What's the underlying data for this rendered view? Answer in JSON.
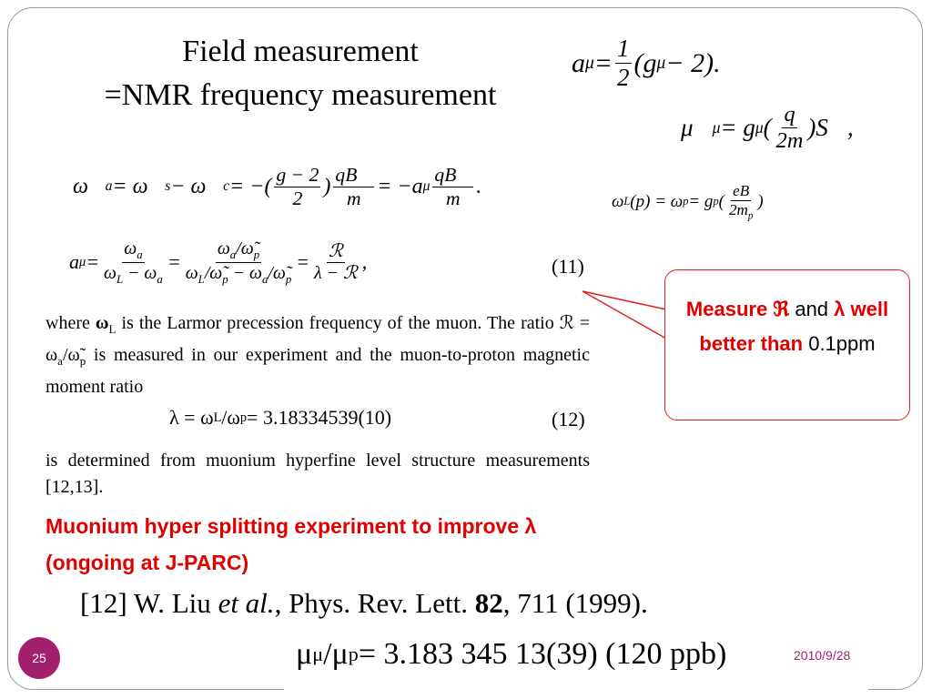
{
  "slide": {
    "title_lines": [
      "Field measurement",
      "=NMR frequency measurement"
    ],
    "number": "25",
    "date": "2010/9/28"
  },
  "equations": {
    "a_mu": [
      "a",
      {
        "sub": "μ"
      },
      " = ",
      {
        "num": [
          "1"
        ],
        "den": [
          "2"
        ]
      },
      "(g",
      {
        "sub": "μ"
      },
      " − 2)."
    ],
    "mu_vec": [
      "μ⃗",
      {
        "sub": "μ"
      },
      " = g",
      {
        "sub": "μ"
      },
      "(",
      {
        "num": [
          "q"
        ],
        "den": [
          "2m"
        ]
      },
      ")S⃗,"
    ],
    "omega_a": [
      "ω⃗",
      {
        "sub": "a"
      },
      " = ω⃗",
      {
        "sub": "s"
      },
      " − ω⃗",
      {
        "sub": "c"
      },
      " = −(",
      {
        "num": [
          "g − 2"
        ],
        "den": [
          "2"
        ]
      },
      ")",
      {
        "num": [
          "qB⃗"
        ],
        "den": [
          "m"
        ]
      },
      " = −a",
      {
        "sub": "μ"
      },
      " ",
      {
        "num": [
          "qB⃗"
        ],
        "den": [
          "m"
        ]
      },
      "."
    ],
    "omega_L": [
      "ω",
      {
        "sub": "L"
      },
      "(p) = ω",
      {
        "sub": "p"
      },
      " = g",
      {
        "sub": "p"
      },
      " (",
      {
        "num": [
          "eB"
        ],
        "den": [
          "2m",
          {
            "sub": "p"
          }
        ]
      },
      ")"
    ],
    "a_mu_ratio": [
      "a",
      {
        "sub": "μ"
      },
      " = ",
      {
        "num": [
          "ω",
          {
            "sub": "a"
          }
        ],
        "den": [
          "ω",
          {
            "sub": "L"
          },
          " − ω",
          {
            "sub": "a"
          }
        ]
      },
      " = ",
      {
        "num": [
          "ω",
          {
            "sub": "a"
          },
          "/ω̃",
          {
            "sub": "p"
          }
        ],
        "den": [
          "ω",
          {
            "sub": "L"
          },
          "/ω̃",
          {
            "sub": "p"
          },
          " − ω",
          {
            "sub": "a"
          },
          "/ω̃",
          {
            "sub": "p"
          }
        ]
      },
      " = ",
      {
        "num": [
          "ℛ"
        ],
        "den": [
          "λ − ℛ"
        ]
      },
      ","
    ],
    "a_mu_ratio_number": "(11)",
    "lambda": [
      "λ = ω",
      {
        "sub": "L"
      },
      "/ω",
      {
        "sub": "p"
      },
      " = 3.18334539(10)"
    ],
    "lambda_number": "(12)",
    "mu_ratio": [
      "μ",
      {
        "sub": "μ"
      },
      "/μ",
      {
        "sub": "p"
      },
      " = 3.183 345 13(39)  (120 ppb)"
    ]
  },
  "paper_text": {
    "paragraph_1": [
      "where ",
      {
        "b": "ω"
      },
      {
        "sub": "L"
      },
      " is the Larmor precession frequency of the muon. The ratio ℛ = ω",
      {
        "sub": "a"
      },
      "/ω̃",
      {
        "sub": "p"
      },
      " is measured in our experiment and the muon-to-proton magnetic moment ratio"
    ],
    "paragraph_2": "is determined from muonium hyperfine level structure measurements [12,13]."
  },
  "callout": [
    "Measure ℜ",
    " and ",
    "λ well better than",
    " 0.1ppm"
  ],
  "highlight_lines": [
    "Muonium hyper splitting experiment to improve λ",
    "(ongoing at J-PARC)"
  ],
  "reference": [
    "[12]  W. Liu ",
    {
      "i": "et al."
    },
    ", Phys. Rev. Lett. ",
    {
      "b": "82"
    },
    ", 711 (1999)."
  ]
}
